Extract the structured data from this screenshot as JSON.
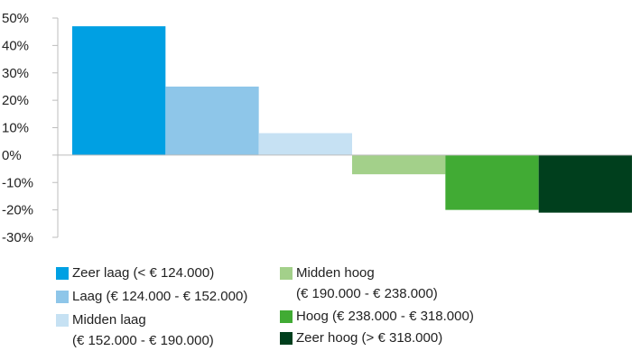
{
  "chart_data": {
    "type": "bar",
    "ylim": [
      -30,
      50
    ],
    "y_ticks": [
      "50%",
      "40%",
      "30%",
      "20%",
      "10%",
      "0%",
      "-10%",
      "-20%",
      "-30%"
    ],
    "y_tick_values": [
      50,
      40,
      30,
      20,
      10,
      0,
      -10,
      -20,
      -30
    ],
    "series": [
      {
        "name": "Zeer laag (< € 124.000)",
        "name_lines": [
          "Zeer laag (< € 124.000)"
        ],
        "value": 47,
        "color": "#00a0e3"
      },
      {
        "name": "Laag (€ 124.000 - € 152.000)",
        "name_lines": [
          "Laag (€ 124.000 - € 152.000)"
        ],
        "value": 25,
        "color": "#8ec6e9"
      },
      {
        "name": "Midden laag (€ 152.000 - € 190.000)",
        "name_lines": [
          "Midden laag",
          "(€ 152.000 - € 190.000)"
        ],
        "value": 8,
        "color": "#c6e1f3"
      },
      {
        "name": "Midden hoog (€ 190.000 - € 238.000)",
        "name_lines": [
          "Midden hoog",
          "(€ 190.000 - € 238.000)"
        ],
        "value": -7,
        "color": "#a3d08a"
      },
      {
        "name": "Hoog (€ 238.000 - € 318.000)",
        "name_lines": [
          "Hoog (€ 238.000 - € 318.000)"
        ],
        "value": -20,
        "color": "#41ab34"
      },
      {
        "name": "Zeer hoog (> € 318.000)",
        "name_lines": [
          "Zeer hoog (> € 318.000)"
        ],
        "value": -21,
        "color": "#003f1d"
      }
    ],
    "grid": false,
    "legend_position": "bottom"
  }
}
